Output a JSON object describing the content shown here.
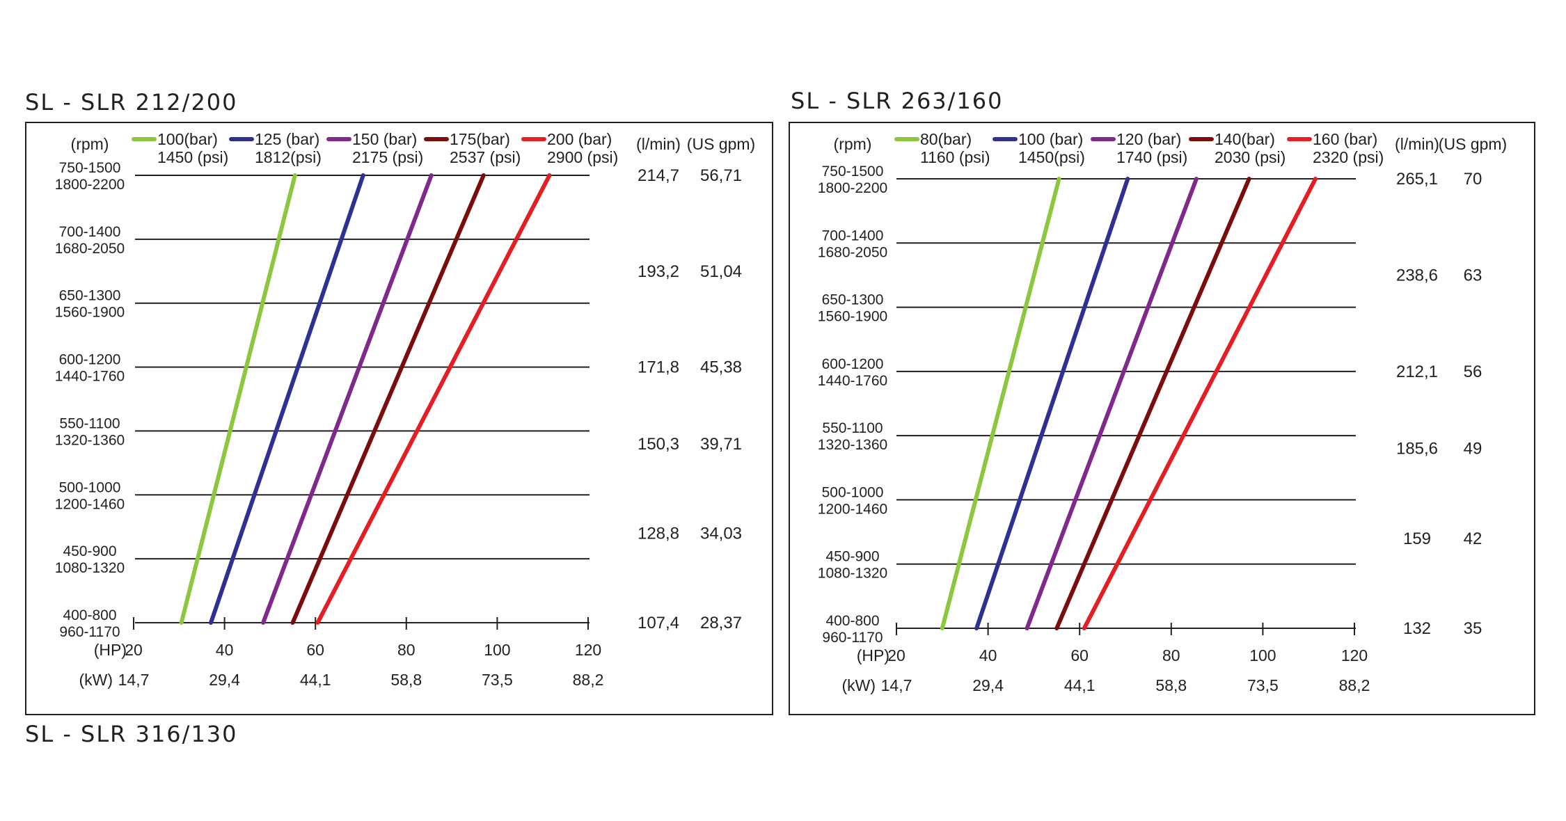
{
  "extra_title": "SL - SLR 316/130",
  "chart_data": [
    {
      "type": "line",
      "title": "SL - SLR 212/200",
      "rpm_header": "(rpm)",
      "flow_headers": [
        "(l/min)",
        "(US gpm)"
      ],
      "hp_label": "(HP)",
      "kw_label": "(kW)",
      "rpm_rows": [
        [
          "750-1500",
          "1800-2200"
        ],
        [
          "700-1400",
          "1680-2050"
        ],
        [
          "650-1300",
          "1560-1900"
        ],
        [
          "600-1200",
          "1440-1760"
        ],
        [
          "550-1100",
          "1320-1360"
        ],
        [
          "500-1000",
          "1200-1460"
        ],
        [
          "450-900",
          "1080-1320"
        ],
        [
          "400-800",
          "960-1170"
        ]
      ],
      "flow_rows": [
        {
          "lmin": "214,7",
          "gpm": "56,71",
          "level": 7
        },
        {
          "lmin": "193,2",
          "gpm": "51,04",
          "level": 5.5
        },
        {
          "lmin": "171,8",
          "gpm": "45,38",
          "level": 4
        },
        {
          "lmin": "150,3",
          "gpm": "39,71",
          "level": 2.8
        },
        {
          "lmin": "128,8",
          "gpm": "34,03",
          "level": 1.4
        },
        {
          "lmin": "107,4",
          "gpm": "28,37",
          "level": 0
        }
      ],
      "hp_ticks": [
        "20",
        "40",
        "60",
        "80",
        "100",
        "120"
      ],
      "kw_ticks": [
        "14,7",
        "29,4",
        "44,1",
        "58,8",
        "73,5",
        "88,2"
      ],
      "xlim": [
        20,
        120
      ],
      "series": [
        {
          "name": "100(bar)",
          "psi": "1450 (psi)",
          "color": "#8dc63f",
          "hp": [
            30.5,
            55.5
          ]
        },
        {
          "name": "125 (bar)",
          "psi": "1812(psi)",
          "color": "#2e3192",
          "hp": [
            37,
            70.5
          ]
        },
        {
          "name": "150 (bar)",
          "psi": "2175 (psi)",
          "color": "#7f2a8a",
          "hp": [
            48.5,
            85.5
          ]
        },
        {
          "name": "175(bar)",
          "psi": "2537 (psi)",
          "color": "#7a0c0c",
          "hp": [
            55,
            97
          ]
        },
        {
          "name": "200 (bar)",
          "psi": "2900 (psi)",
          "color": "#e31e24",
          "hp": [
            60.5,
            111.5
          ]
        }
      ]
    },
    {
      "type": "line",
      "title": "SL - SLR 263/160",
      "rpm_header": "(rpm)",
      "flow_headers": [
        "(l/min)",
        "(US gpm)"
      ],
      "hp_label": "(HP)",
      "kw_label": "(kW)",
      "rpm_rows": [
        [
          "750-1500",
          "1800-2200"
        ],
        [
          "700-1400",
          "1680-2050"
        ],
        [
          "650-1300",
          "1560-1900"
        ],
        [
          "600-1200",
          "1440-1760"
        ],
        [
          "550-1100",
          "1320-1360"
        ],
        [
          "500-1000",
          "1200-1460"
        ],
        [
          "450-900",
          "1080-1320"
        ],
        [
          "400-800",
          "960-1170"
        ]
      ],
      "flow_rows": [
        {
          "lmin": "265,1",
          "gpm": "70",
          "level": 7
        },
        {
          "lmin": "238,6",
          "gpm": "63",
          "level": 5.5
        },
        {
          "lmin": "212,1",
          "gpm": "56",
          "level": 4
        },
        {
          "lmin": "185,6",
          "gpm": "49",
          "level": 2.8
        },
        {
          "lmin": "159",
          "gpm": "42",
          "level": 1.4
        },
        {
          "lmin": "132",
          "gpm": "35",
          "level": 0
        }
      ],
      "hp_ticks": [
        "20",
        "40",
        "60",
        "80",
        "100",
        "120"
      ],
      "kw_ticks": [
        "14,7",
        "29,4",
        "44,1",
        "58,8",
        "73,5",
        "88,2"
      ],
      "xlim": [
        20,
        120
      ],
      "series": [
        {
          "name": "80(bar)",
          "psi": "1160 (psi)",
          "color": "#8dc63f",
          "hp": [
            30,
            55.5
          ]
        },
        {
          "name": "100 (bar)",
          "psi": "1450(psi)",
          "color": "#2e3192",
          "hp": [
            37.5,
            70.5
          ]
        },
        {
          "name": "120 (bar)",
          "psi": "1740 (psi)",
          "color": "#7f2a8a",
          "hp": [
            48.5,
            85.5
          ]
        },
        {
          "name": "140(bar)",
          "psi": "2030 (psi)",
          "color": "#7a0c0c",
          "hp": [
            55,
            97
          ]
        },
        {
          "name": "160 (bar)",
          "psi": "2320 (psi)",
          "color": "#e31e24",
          "hp": [
            61,
            111.5
          ]
        }
      ]
    }
  ]
}
